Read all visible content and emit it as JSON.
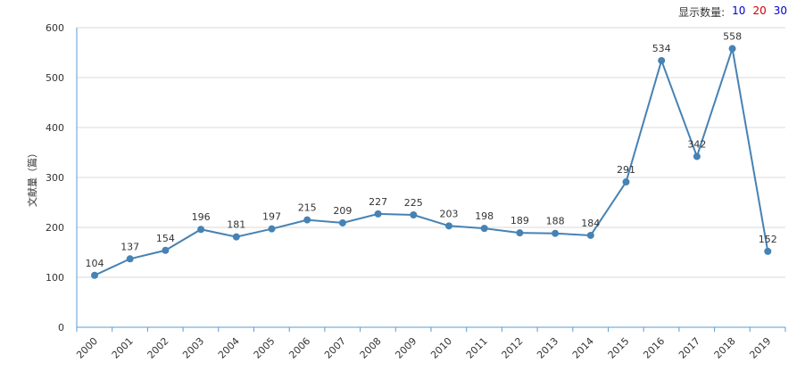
{
  "controls": {
    "label": "显示数量:",
    "options": [
      {
        "text": "10",
        "color": "#0000cc"
      },
      {
        "text": "20",
        "color": "#cc0000"
      },
      {
        "text": "30",
        "color": "#0000cc"
      }
    ]
  },
  "chart_data": {
    "type": "line",
    "x": [
      "2000",
      "2001",
      "2002",
      "2003",
      "2004",
      "2005",
      "2006",
      "2007",
      "2008",
      "2009",
      "2010",
      "2011",
      "2012",
      "2013",
      "2014",
      "2015",
      "2016",
      "2017",
      "2018",
      "2019"
    ],
    "values": [
      104,
      137,
      154,
      196,
      181,
      197,
      215,
      209,
      227,
      225,
      203,
      198,
      189,
      188,
      184,
      291,
      534,
      342,
      558,
      152
    ],
    "ylabel": "文献量（篇）",
    "ylim": [
      0,
      600
    ],
    "yticks": [
      0,
      100,
      200,
      300,
      400,
      500,
      600
    ],
    "grid": true,
    "line_color": "#4682b4"
  }
}
